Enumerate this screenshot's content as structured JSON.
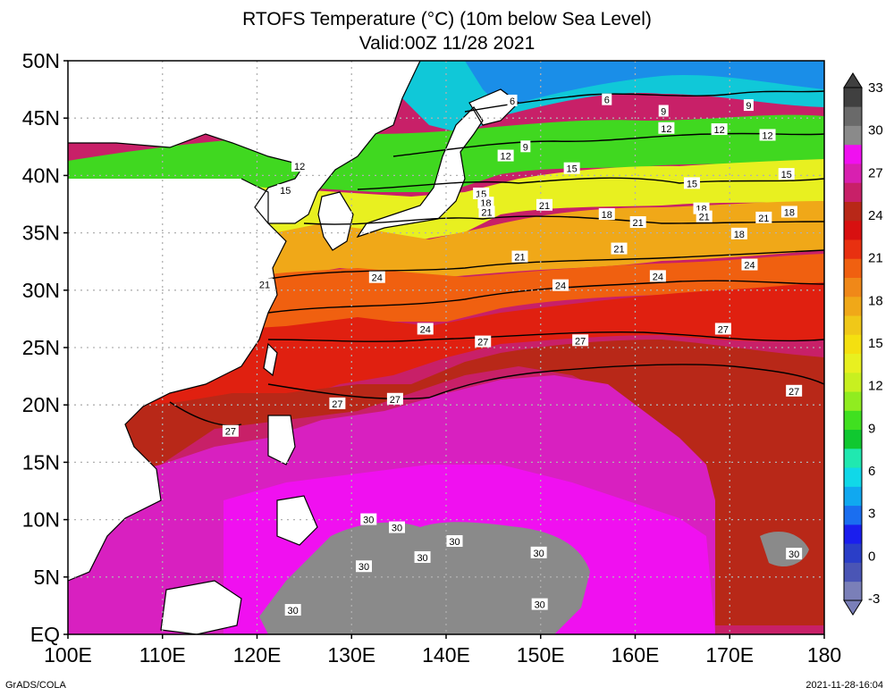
{
  "title_line1": "RTOFS Temperature (°C) (10m below Sea Level)",
  "title_line2": "Valid:00Z 11/28 2021",
  "footer_left": "GrADS/COLA",
  "footer_right": "2021-11-28-16:04",
  "map": {
    "lon_range": [
      100,
      180
    ],
    "lat_range": [
      0,
      50
    ],
    "lon_ticks": [
      "100E",
      "110E",
      "120E",
      "130E",
      "140E",
      "150E",
      "160E",
      "170E",
      "180"
    ],
    "lat_ticks": [
      "EQ",
      "5N",
      "10N",
      "15N",
      "20N",
      "25N",
      "30N",
      "35N",
      "40N",
      "45N",
      "50N"
    ],
    "grid": true
  },
  "colorbar": {
    "labels": [
      "-3",
      "0",
      "3",
      "6",
      "9",
      "12",
      "15",
      "18",
      "21",
      "24",
      "27",
      "30",
      "33"
    ],
    "colors": [
      "#7a7fb8",
      "#4a55b5",
      "#2a3ec8",
      "#1a1eee",
      "#1a6ef0",
      "#10a8f0",
      "#10d8e8",
      "#20e8b0",
      "#10c830",
      "#40e020",
      "#90ec20",
      "#c8f020",
      "#e8f020",
      "#f4e010",
      "#f0c818",
      "#f0a818",
      "#f08818",
      "#f06010",
      "#e83010",
      "#d81010",
      "#b82818",
      "#c82068",
      "#d820b0",
      "#f010f0",
      "#8a8a8a",
      "#6a6a6a",
      "#404040"
    ]
  },
  "contour_labels": [
    {
      "text": "6",
      "lon": 147,
      "lat": 46.5
    },
    {
      "text": "6",
      "lon": 157,
      "lat": 46.6
    },
    {
      "text": "9",
      "lon": 163,
      "lat": 45.6
    },
    {
      "text": "9",
      "lon": 172,
      "lat": 46.1
    },
    {
      "text": "9",
      "lon": 148.4,
      "lat": 42.5
    },
    {
      "text": "12",
      "lon": 124.5,
      "lat": 40.8
    },
    {
      "text": "12",
      "lon": 146.3,
      "lat": 41.7
    },
    {
      "text": "12",
      "lon": 163.3,
      "lat": 44.1
    },
    {
      "text": "12",
      "lon": 168.9,
      "lat": 44.0
    },
    {
      "text": "12",
      "lon": 174,
      "lat": 43.5
    },
    {
      "text": "15",
      "lon": 123,
      "lat": 38.7
    },
    {
      "text": "15",
      "lon": 143.7,
      "lat": 38.4
    },
    {
      "text": "15",
      "lon": 153.3,
      "lat": 40.6
    },
    {
      "text": "15",
      "lon": 166,
      "lat": 39.3
    },
    {
      "text": "15",
      "lon": 176,
      "lat": 40.1
    },
    {
      "text": "18",
      "lon": 144.2,
      "lat": 37.6
    },
    {
      "text": "18",
      "lon": 157,
      "lat": 36.6
    },
    {
      "text": "18",
      "lon": 167,
      "lat": 37.1
    },
    {
      "text": "18",
      "lon": 171,
      "lat": 34.9
    },
    {
      "text": "18",
      "lon": 176.3,
      "lat": 36.8
    },
    {
      "text": "21",
      "lon": 144.3,
      "lat": 36.8
    },
    {
      "text": "21",
      "lon": 150.4,
      "lat": 37.4
    },
    {
      "text": "21",
      "lon": 160.3,
      "lat": 35.9
    },
    {
      "text": "21",
      "lon": 167.3,
      "lat": 36.4
    },
    {
      "text": "21",
      "lon": 173.6,
      "lat": 36.3
    },
    {
      "text": "21",
      "lon": 147.8,
      "lat": 32.9
    },
    {
      "text": "21",
      "lon": 158.3,
      "lat": 33.6
    },
    {
      "text": "21",
      "lon": 120.8,
      "lat": 30.5
    },
    {
      "text": "24",
      "lon": 132.7,
      "lat": 31.1
    },
    {
      "text": "24",
      "lon": 152.1,
      "lat": 30.4
    },
    {
      "text": "24",
      "lon": 162.4,
      "lat": 31.2
    },
    {
      "text": "24",
      "lon": 172.1,
      "lat": 32.2
    },
    {
      "text": "24",
      "lon": 137.8,
      "lat": 26.6
    },
    {
      "text": "27",
      "lon": 143.9,
      "lat": 25.5
    },
    {
      "text": "27",
      "lon": 154.2,
      "lat": 25.6
    },
    {
      "text": "27",
      "lon": 169.3,
      "lat": 26.6
    },
    {
      "text": "27",
      "lon": 128.5,
      "lat": 20.1
    },
    {
      "text": "27",
      "lon": 134.6,
      "lat": 20.5
    },
    {
      "text": "27",
      "lon": 117.2,
      "lat": 17.7
    },
    {
      "text": "27",
      "lon": 176.8,
      "lat": 21.2
    },
    {
      "text": "30",
      "lon": 131.8,
      "lat": 10
    },
    {
      "text": "30",
      "lon": 134.8,
      "lat": 9.3
    },
    {
      "text": "30",
      "lon": 140.9,
      "lat": 8.1
    },
    {
      "text": "30",
      "lon": 137.5,
      "lat": 6.7
    },
    {
      "text": "30",
      "lon": 131.3,
      "lat": 5.9
    },
    {
      "text": "30",
      "lon": 149.8,
      "lat": 7.1
    },
    {
      "text": "30",
      "lon": 176.8,
      "lat": 7
    },
    {
      "text": "30",
      "lon": 149.9,
      "lat": 2.6
    },
    {
      "text": "30",
      "lon": 123.8,
      "lat": 2.1
    }
  ]
}
